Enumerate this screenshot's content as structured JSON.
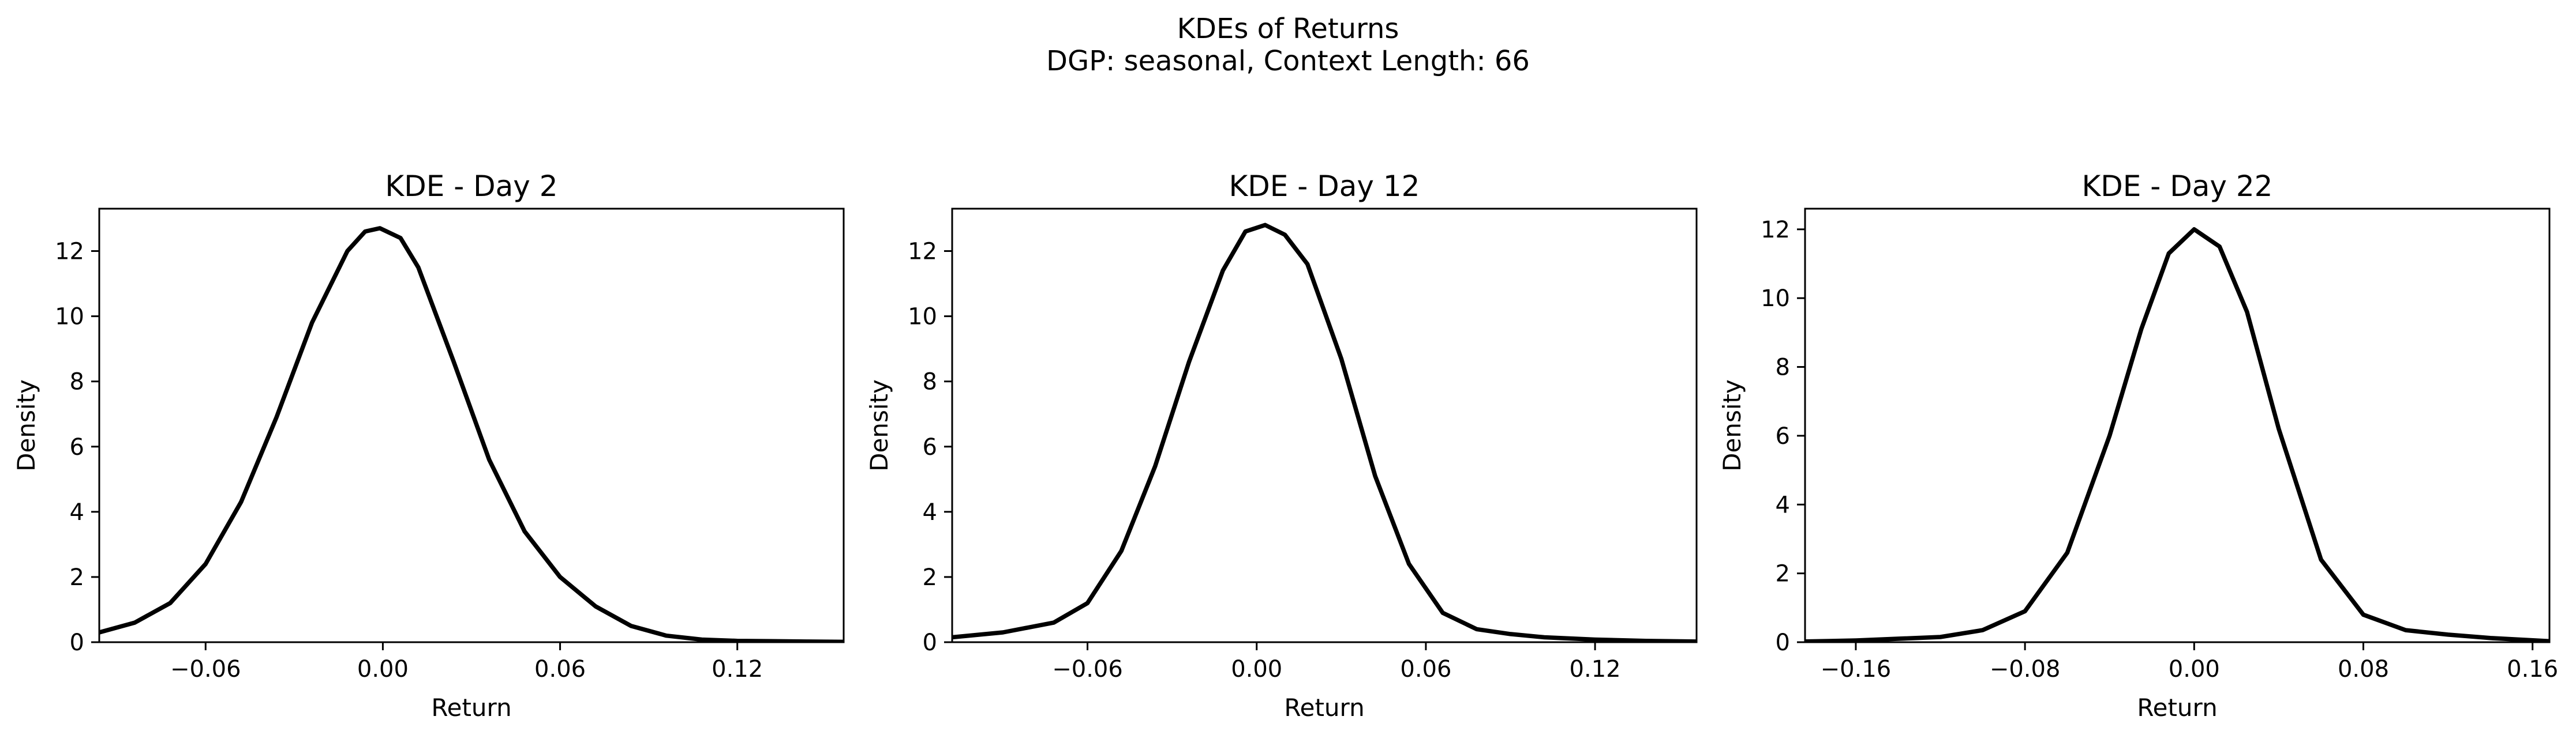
{
  "figure": {
    "suptitle_line1": "KDEs of Returns",
    "suptitle_line2": "DGP: seasonal, Context Length: 66"
  },
  "chart_data": [
    {
      "type": "line",
      "title": "KDE - Day 2",
      "xlabel": "Return",
      "ylabel": "Density",
      "xlim": [
        -0.096,
        0.156
      ],
      "ylim": [
        0,
        13.3
      ],
      "xticks": [
        -0.06,
        0.0,
        0.06,
        0.12
      ],
      "xtick_labels": [
        "−0.06",
        "0.00",
        "0.06",
        "0.12"
      ],
      "yticks": [
        0,
        2,
        4,
        6,
        8,
        10,
        12
      ],
      "ytick_labels": [
        "0",
        "2",
        "4",
        "6",
        "8",
        "10",
        "12"
      ],
      "grid": false,
      "line_color": "#000000",
      "series": [
        {
          "x": [
            -0.096,
            -0.084,
            -0.072,
            -0.06,
            -0.048,
            -0.036,
            -0.024,
            -0.012,
            -0.006,
            -0.001,
            0.006,
            0.012,
            0.024,
            0.036,
            0.048,
            0.06,
            0.072,
            0.084,
            0.096,
            0.108,
            0.12,
            0.132,
            0.144,
            0.156
          ],
          "y": [
            0.3,
            0.6,
            1.2,
            2.4,
            4.3,
            6.9,
            9.8,
            12.0,
            12.6,
            12.7,
            12.4,
            11.5,
            8.6,
            5.6,
            3.4,
            2.0,
            1.1,
            0.5,
            0.2,
            0.08,
            0.04,
            0.03,
            0.02,
            0.01
          ]
        }
      ]
    },
    {
      "type": "line",
      "title": "KDE - Day 12",
      "xlabel": "Return",
      "ylabel": "Density",
      "xlim": [
        -0.108,
        0.156
      ],
      "ylim": [
        0,
        13.3
      ],
      "xticks": [
        -0.06,
        0.0,
        0.06,
        0.12
      ],
      "xtick_labels": [
        "−0.06",
        "0.00",
        "0.06",
        "0.12"
      ],
      "yticks": [
        0,
        2,
        4,
        6,
        8,
        10,
        12
      ],
      "ytick_labels": [
        "0",
        "2",
        "4",
        "6",
        "8",
        "10",
        "12"
      ],
      "grid": false,
      "line_color": "#000000",
      "series": [
        {
          "x": [
            -0.108,
            -0.09,
            -0.072,
            -0.06,
            -0.048,
            -0.036,
            -0.024,
            -0.012,
            -0.004,
            0.003,
            0.01,
            0.018,
            0.03,
            0.042,
            0.054,
            0.066,
            0.078,
            0.09,
            0.102,
            0.12,
            0.138,
            0.156
          ],
          "y": [
            0.15,
            0.3,
            0.6,
            1.2,
            2.8,
            5.4,
            8.6,
            11.4,
            12.6,
            12.8,
            12.5,
            11.6,
            8.7,
            5.1,
            2.4,
            0.9,
            0.4,
            0.25,
            0.15,
            0.08,
            0.04,
            0.02
          ]
        }
      ]
    },
    {
      "type": "line",
      "title": "KDE - Day 22",
      "xlabel": "Return",
      "ylabel": "Density",
      "xlim": [
        -0.184,
        0.168
      ],
      "ylim": [
        0,
        12.6
      ],
      "xticks": [
        -0.16,
        -0.08,
        0.0,
        0.08,
        0.16
      ],
      "xtick_labels": [
        "−0.16",
        "−0.08",
        "0.00",
        "0.08",
        "0.16"
      ],
      "yticks": [
        0,
        2,
        4,
        6,
        8,
        10,
        12
      ],
      "ytick_labels": [
        "0",
        "2",
        "4",
        "6",
        "8",
        "10",
        "12"
      ],
      "grid": false,
      "line_color": "#000000",
      "series": [
        {
          "x": [
            -0.184,
            -0.16,
            -0.12,
            -0.1,
            -0.08,
            -0.06,
            -0.04,
            -0.025,
            -0.012,
            0.0,
            0.012,
            0.025,
            0.04,
            0.06,
            0.08,
            0.1,
            0.12,
            0.14,
            0.168
          ],
          "y": [
            0.02,
            0.05,
            0.15,
            0.35,
            0.9,
            2.6,
            6.0,
            9.1,
            11.3,
            12.0,
            11.5,
            9.6,
            6.2,
            2.4,
            0.8,
            0.35,
            0.22,
            0.12,
            0.03
          ]
        }
      ]
    }
  ]
}
